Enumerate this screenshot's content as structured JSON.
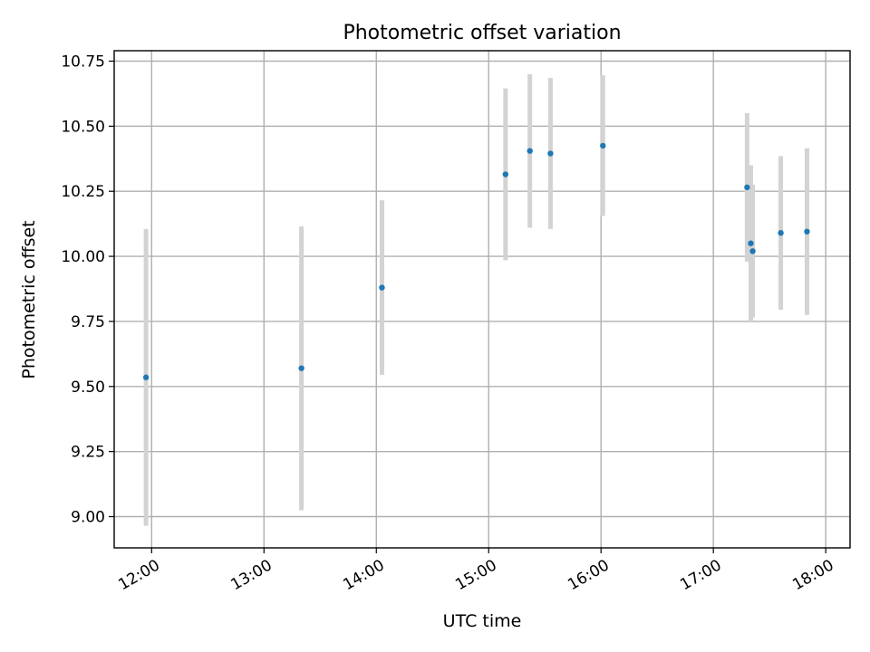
{
  "chart_data": {
    "type": "scatter",
    "title": "Photometric offset variation",
    "xlabel": "UTC time",
    "ylabel": "Photometric offset",
    "x_tick_labels": [
      "12:00",
      "13:00",
      "14:00",
      "15:00",
      "16:00",
      "17:00",
      "18:00"
    ],
    "y_tick_labels": [
      "9.00",
      "9.25",
      "9.50",
      "9.75",
      "10.00",
      "10.25",
      "10.50",
      "10.75"
    ],
    "xlim": [
      "11:40",
      "18:13"
    ],
    "ylim": [
      8.88,
      10.79
    ],
    "grid": true,
    "error_bar_color": "#d3d3d3",
    "marker_color": "#1f77b4",
    "points": [
      {
        "x": "11:57",
        "y": 9.535,
        "yerr": 0.57
      },
      {
        "x": "13:20",
        "y": 9.57,
        "yerr": 0.545
      },
      {
        "x": "14:03",
        "y": 9.88,
        "yerr": 0.335
      },
      {
        "x": "15:09",
        "y": 10.315,
        "yerr": 0.33
      },
      {
        "x": "15:22",
        "y": 10.405,
        "yerr": 0.295
      },
      {
        "x": "15:33",
        "y": 10.395,
        "yerr": 0.29
      },
      {
        "x": "16:01",
        "y": 10.425,
        "yerr": 0.27
      },
      {
        "x": "17:18",
        "y": 10.265,
        "yerr": 0.285
      },
      {
        "x": "17:20",
        "y": 10.05,
        "yerr": 0.3
      },
      {
        "x": "17:21",
        "y": 10.02,
        "yerr": 0.255
      },
      {
        "x": "17:36",
        "y": 10.09,
        "yerr": 0.295
      },
      {
        "x": "17:50",
        "y": 10.095,
        "yerr": 0.32
      }
    ]
  }
}
